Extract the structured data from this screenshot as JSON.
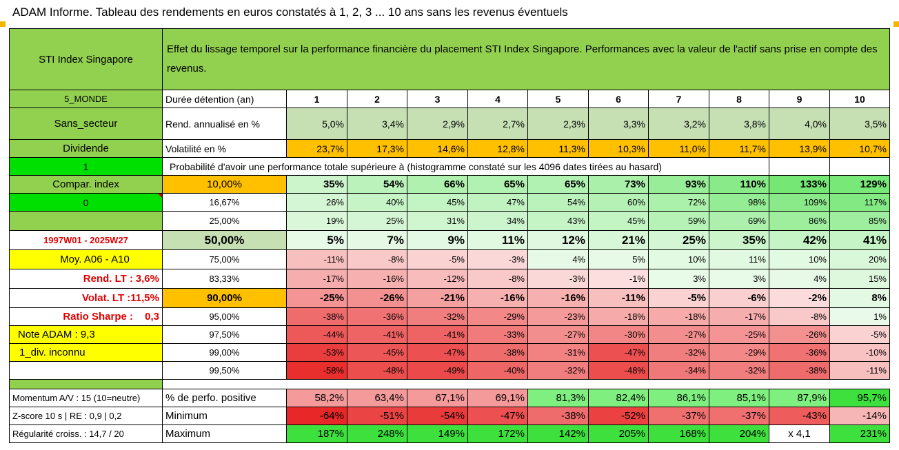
{
  "title": "ADAM Informe. Tableau des rendements en euros constatés à 1, 2, 3 ... 10 ans sans les revenus éventuels",
  "header": {
    "left": "STI Index Singapore",
    "right": "Effet du lissage temporel sur la performance financière du placement STI Index Singapore. Performances avec la valeur de l'actif sans prise en compte des revenus."
  },
  "side": {
    "monde": "5_MONDE",
    "secteur": "Sans_secteur",
    "dividende": "Dividende",
    "one": "1",
    "compar": "Compar. index",
    "zero": "0",
    "blank": "",
    "period": "1997W01 - 2025W27",
    "moy": "Moy. A06 - A10",
    "rend_lt_label": "Rend. LT :",
    "rend_lt_value": "3,6%",
    "volat_lt_label": "Volat. LT :",
    "volat_lt_value": "11,5%",
    "sharpe_label": "Ratio Sharpe :",
    "sharpe_value": "0,3",
    "note": "Note ADAM : 9,3",
    "div": "1_div. inconnu",
    "momentum": "Momentum A/V : 15 (10=neutre)",
    "zscore": "Z-score 10 s | RE : 0,9 | 0,2",
    "regularite": "Régularité croiss. : 14,7 / 20"
  },
  "rows": {
    "duree_label": "Durée détention (an)",
    "years": [
      "1",
      "2",
      "3",
      "4",
      "5",
      "6",
      "7",
      "8",
      "9",
      "10"
    ],
    "rend_label": "Rend. annualisé en %",
    "rend": [
      "5,0%",
      "3,4%",
      "2,9%",
      "2,7%",
      "2,3%",
      "3,3%",
      "3,2%",
      "3,8%",
      "4,0%",
      "3,5%"
    ],
    "vol_label": "Volatilité en %",
    "vol": [
      "23,7%",
      "17,3%",
      "14,6%",
      "12,8%",
      "11,3%",
      "10,3%",
      "11,0%",
      "11,7%",
      "13,9%",
      "10,7%"
    ],
    "proba_label": "Probabilité d'avoir une performance totale supérieure à (histogramme constaté sur les 4096 dates tirées au hasard)",
    "perf_pos_label": "% de perfo. positive",
    "perf_pos": [
      "58,2%",
      "63,4%",
      "67,1%",
      "69,1%",
      "81,3%",
      "82,4%",
      "86,1%",
      "85,1%",
      "87,9%",
      "95,7%"
    ],
    "min_label": "Minimum",
    "min": [
      "-64%",
      "-51%",
      "-54%",
      "-47%",
      "-38%",
      "-52%",
      "-37%",
      "-37%",
      "-43%",
      "-14%"
    ],
    "max_label": "Maximum",
    "max": [
      "187%",
      "248%",
      "149%",
      "172%",
      "142%",
      "205%",
      "168%",
      "204%",
      "x 4,1",
      "231%"
    ]
  },
  "proba": [
    {
      "threshold": "10,00%",
      "values": [
        "35%",
        "54%",
        "66%",
        "65%",
        "65%",
        "73%",
        "93%",
        "110%",
        "133%",
        "129%"
      ]
    },
    {
      "threshold": "16,67%",
      "values": [
        "26%",
        "40%",
        "45%",
        "47%",
        "54%",
        "60%",
        "72%",
        "98%",
        "109%",
        "117%"
      ]
    },
    {
      "threshold": "25,00%",
      "values": [
        "19%",
        "25%",
        "31%",
        "34%",
        "43%",
        "45%",
        "59%",
        "69%",
        "86%",
        "85%"
      ]
    },
    {
      "threshold": "50,00%",
      "values": [
        "5%",
        "7%",
        "9%",
        "11%",
        "12%",
        "21%",
        "25%",
        "35%",
        "42%",
        "41%"
      ]
    },
    {
      "threshold": "75,00%",
      "values": [
        "-11%",
        "-8%",
        "-5%",
        "-3%",
        "4%",
        "5%",
        "10%",
        "11%",
        "10%",
        "20%"
      ]
    },
    {
      "threshold": "83,33%",
      "values": [
        "-17%",
        "-16%",
        "-12%",
        "-8%",
        "-3%",
        "-1%",
        "3%",
        "3%",
        "4%",
        "15%"
      ]
    },
    {
      "threshold": "90,00%",
      "values": [
        "-25%",
        "-26%",
        "-21%",
        "-16%",
        "-16%",
        "-11%",
        "-5%",
        "-6%",
        "-2%",
        "8%"
      ]
    },
    {
      "threshold": "95,00%",
      "values": [
        "-38%",
        "-36%",
        "-32%",
        "-29%",
        "-23%",
        "-18%",
        "-18%",
        "-17%",
        "-8%",
        "1%"
      ]
    },
    {
      "threshold": "97,50%",
      "values": [
        "-44%",
        "-41%",
        "-41%",
        "-33%",
        "-27%",
        "-30%",
        "-27%",
        "-25%",
        "-26%",
        "-5%"
      ]
    },
    {
      "threshold": "99,00%",
      "values": [
        "-53%",
        "-45%",
        "-47%",
        "-38%",
        "-31%",
        "-47%",
        "-32%",
        "-29%",
        "-36%",
        "-10%"
      ]
    },
    {
      "threshold": "99,50%",
      "values": [
        "-58%",
        "-48%",
        "-49%",
        "-40%",
        "-32%",
        "-48%",
        "-34%",
        "-32%",
        "-38%",
        "-11%"
      ]
    }
  ],
  "colors": {
    "header_green": "#92d050",
    "light_green": "#c6e0b4",
    "orange": "#ffc000",
    "yellow": "#ffff00",
    "bright_green": "#00e000",
    "red_text": "#e00000"
  }
}
